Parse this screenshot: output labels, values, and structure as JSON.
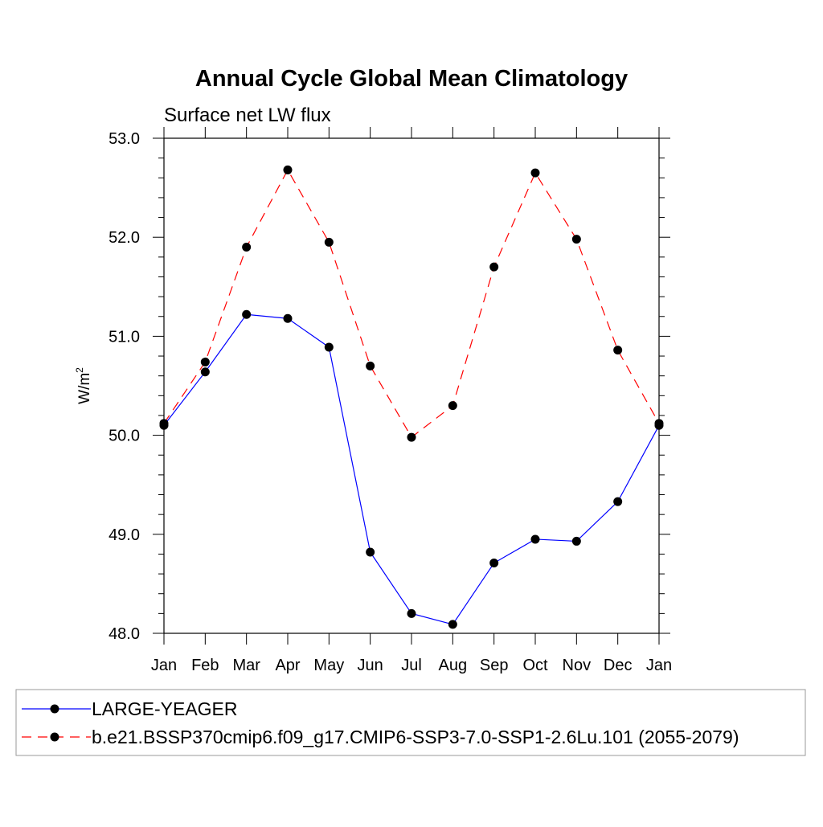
{
  "chart_data": {
    "type": "line",
    "title": "Annual Cycle Global Mean Climatology",
    "subtitle": "Surface net LW flux",
    "ylabel": "W/m",
    "ylabel_sup": "2",
    "xlabel": "",
    "categories": [
      "Jan",
      "Feb",
      "Mar",
      "Apr",
      "May",
      "Jun",
      "Jul",
      "Aug",
      "Sep",
      "Oct",
      "Nov",
      "Dec",
      "Jan"
    ],
    "y_tick_labels": [
      "48.0",
      "49.0",
      "50.0",
      "51.0",
      "52.0",
      "53.0"
    ],
    "ylim": [
      48.0,
      53.0
    ],
    "grid": false,
    "legend_position": "bottom",
    "series": [
      {
        "name": "LARGE-YEAGER",
        "color": "#0000ff",
        "line_style": "solid",
        "values": [
          50.1,
          50.64,
          51.22,
          51.18,
          50.89,
          48.82,
          48.2,
          48.09,
          48.71,
          48.95,
          48.93,
          49.33,
          50.1
        ]
      },
      {
        "name": "b.e21.BSSP370cmip6.f09_g17.CMIP6-SSP3-7.0-SSP1-2.6Lu.101 (2055-2079)",
        "color": "#ff0000",
        "line_style": "dashed",
        "values": [
          50.12,
          50.74,
          51.9,
          52.68,
          51.95,
          50.7,
          49.98,
          50.3,
          51.7,
          52.65,
          51.98,
          50.86,
          50.12
        ]
      }
    ]
  }
}
